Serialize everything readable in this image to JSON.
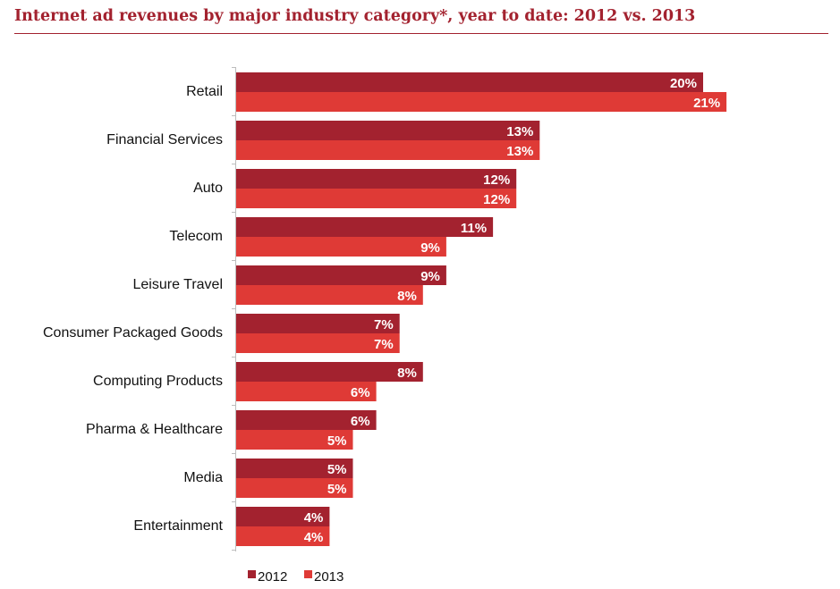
{
  "title": "Internet ad revenues by major industry category*, year to date: 2012 vs. 2013",
  "chart_data": {
    "type": "bar",
    "orientation": "horizontal",
    "categories": [
      "Retail",
      "Financial Services",
      "Auto",
      "Telecom",
      "Leisure Travel",
      "Consumer Packaged Goods",
      "Computing Products",
      "Pharma & Healthcare",
      "Media",
      "Entertainment"
    ],
    "series": [
      {
        "name": "2012",
        "color": "#a3222f",
        "values": [
          20,
          13,
          12,
          11,
          9,
          7,
          8,
          6,
          5,
          4
        ],
        "labels": [
          "20%",
          "13%",
          "12%",
          "11%",
          "9%",
          "7%",
          "8%",
          "6%",
          "5%",
          "4%"
        ]
      },
      {
        "name": "2013",
        "color": "#df3a36",
        "values": [
          21,
          13,
          12,
          9,
          8,
          7,
          6,
          5,
          5,
          4
        ],
        "labels": [
          "21%",
          "13%",
          "12%",
          "9%",
          "8%",
          "7%",
          "6%",
          "5%",
          "5%",
          "4%"
        ]
      }
    ],
    "value_unit": "%",
    "xlim": [
      0,
      25
    ],
    "grid": false,
    "legend": "bottom"
  }
}
